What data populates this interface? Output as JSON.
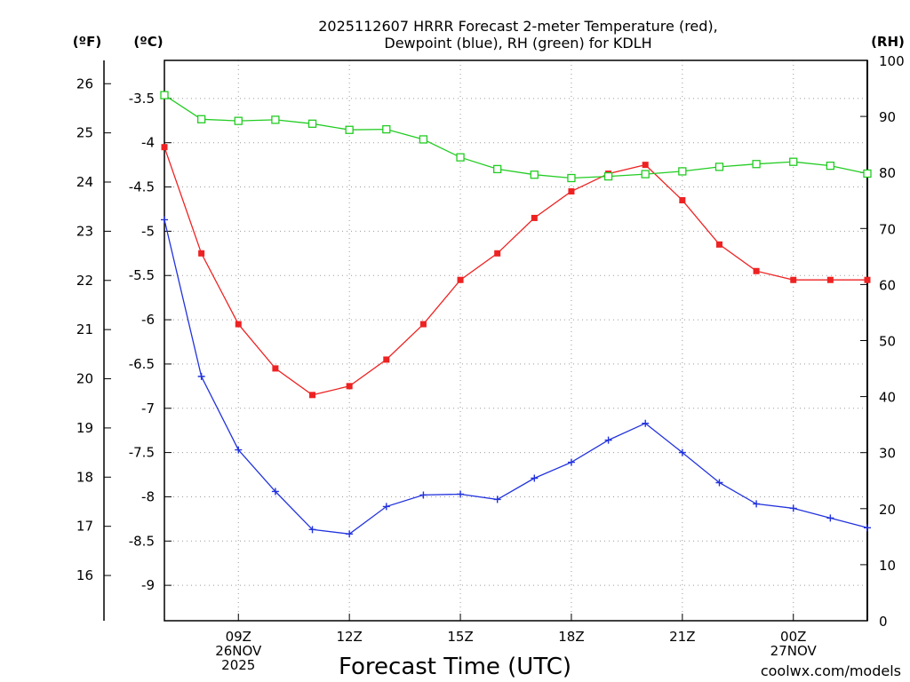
{
  "colors": {
    "temperature": "#ee2222",
    "dewpoint": "#2233dd",
    "rh": "#22cc22",
    "grid": "#9a9a9a",
    "credit": "#dd1111"
  },
  "chart_data": {
    "type": "line",
    "title": [
      "2025112607 HRRR Forecast 2-meter Temperature (red),",
      "Dewpoint (blue), RH (green) for KDLH"
    ],
    "xlabel": "Forecast Time (UTC)",
    "units": {
      "fahrenheit": "(ºF)",
      "celsius": "(ºC)",
      "rh": "(RH)"
    },
    "credit": "coolwx.com/models",
    "x_hours": [
      7,
      8,
      9,
      10,
      11,
      12,
      13,
      14,
      15,
      16,
      17,
      18,
      19,
      20,
      21,
      22,
      23,
      24,
      25,
      26
    ],
    "xlim": [
      7,
      26
    ],
    "x_ticks": [
      {
        "x": 9,
        "lines": [
          "09Z",
          "26NOV",
          "2025"
        ]
      },
      {
        "x": 12,
        "lines": [
          "12Z"
        ]
      },
      {
        "x": 15,
        "lines": [
          "15Z"
        ]
      },
      {
        "x": 18,
        "lines": [
          "18Z"
        ]
      },
      {
        "x": 21,
        "lines": [
          "21Z"
        ]
      },
      {
        "x": 24,
        "lines": [
          "00Z",
          "27NOV"
        ]
      }
    ],
    "ylim_celsius": [
      -9.4,
      -3.07
    ],
    "ylim_rh": [
      0,
      100
    ],
    "celsius_ticks": [
      "-3.5",
      "-4",
      "-4.5",
      "-5",
      "-5.5",
      "-6",
      "-6.5",
      "-7",
      "-7.5",
      "-8",
      "-8.5",
      "-9"
    ],
    "fahrenheit_ticks": [
      "26",
      "25",
      "24",
      "23",
      "22",
      "21",
      "20",
      "19",
      "18",
      "17",
      "16"
    ],
    "rh_ticks": [
      "100",
      "90",
      "80",
      "70",
      "60",
      "50",
      "40",
      "30",
      "20",
      "10",
      "0"
    ],
    "series": [
      {
        "name": "Temperature",
        "unit": "C",
        "marker": "square-filled",
        "values": [
          -4.05,
          -5.25,
          -6.05,
          -6.55,
          -6.85,
          -6.75,
          -6.45,
          -6.05,
          -5.55,
          -5.25,
          -4.85,
          -4.55,
          -4.35,
          -4.25,
          -4.65,
          -5.15,
          -5.45,
          -5.55,
          -5.55,
          -5.55
        ]
      },
      {
        "name": "Dewpoint",
        "unit": "C",
        "marker": "plus",
        "values": [
          -4.87,
          -6.64,
          -7.47,
          -7.94,
          -8.37,
          -8.42,
          -8.11,
          -7.98,
          -7.97,
          -8.03,
          -7.79,
          -7.61,
          -7.36,
          -7.17,
          -7.5,
          -7.84,
          -8.08,
          -8.13,
          -8.24,
          -8.35
        ]
      },
      {
        "name": "RH",
        "unit": "%",
        "marker": "square-open",
        "values": [
          93.8,
          89.5,
          89.2,
          89.4,
          88.7,
          87.6,
          87.7,
          85.9,
          82.7,
          80.6,
          79.6,
          79.0,
          79.3,
          79.7,
          80.2,
          81.0,
          81.5,
          81.9,
          81.2,
          79.8
        ]
      }
    ]
  }
}
